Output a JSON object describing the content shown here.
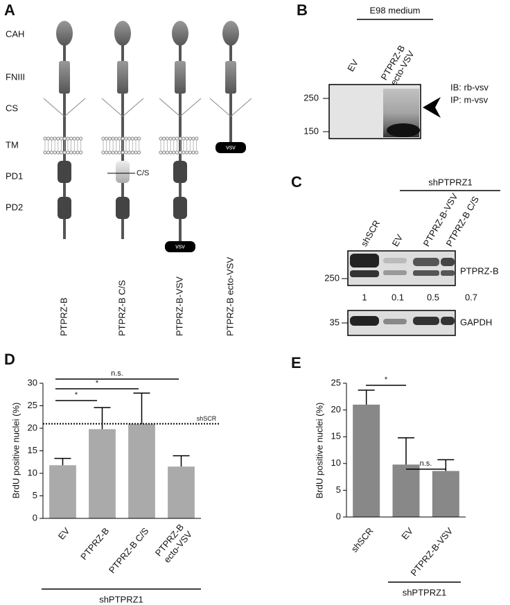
{
  "panel_a": {
    "letter": "A",
    "domain_labels": [
      "CAH",
      "FNIII",
      "CS",
      "TM",
      "PD1",
      "PD2"
    ],
    "constructs": [
      "PTPRZ-B",
      "PTPRZ-B C/S",
      "PTPRZ-B-VSV",
      "PTPRZ-B ecto-VSV"
    ],
    "mutation_label": "C/S",
    "tag_label": "vsv"
  },
  "panel_b": {
    "letter": "B",
    "header": "E98 medium",
    "lanes": [
      "EV",
      "PTPRZ-B\necto-VSV"
    ],
    "markers": [
      "250",
      "150"
    ],
    "notes": [
      "IB: rb-vsv",
      "IP: m-vsv"
    ]
  },
  "panel_c": {
    "letter": "C",
    "group_label": "shPTPRZ1",
    "lanes": [
      "shSCR",
      "EV",
      "PTPRZ-B-VSV",
      "PTPRZ-B C/S"
    ],
    "quantification": [
      "1",
      "0.1",
      "0.5",
      "0.7"
    ],
    "blots": [
      {
        "label": "PTPRZ-B",
        "marker": "250"
      },
      {
        "label": "GAPDH",
        "marker": "35"
      }
    ]
  },
  "chart_data": [
    {
      "type": "bar",
      "panel_label": "D",
      "y_label": "BrdU positive nuclei (%)",
      "categories": [
        "EV",
        "PTPRZ-B",
        "PTPRZ-B C/S",
        "PTPRZ-B\necto-VSV"
      ],
      "values": [
        11.8,
        19.8,
        21,
        11.5
      ],
      "errors": [
        1.5,
        4.8,
        6.8,
        2.4
      ],
      "color": "#aaaaaa",
      "ylim": [
        0,
        30
      ],
      "yticks": [
        0,
        5,
        10,
        15,
        20,
        25,
        30
      ],
      "reference_line": {
        "value": 21,
        "label": "shSCR"
      },
      "annotations": [
        "*",
        "*",
        "n.s."
      ],
      "group_label": "shPTPRZ1"
    },
    {
      "type": "bar",
      "panel_label": "E",
      "y_label": "BrdU positive nuclei (%)",
      "categories": [
        "shSCR",
        "EV",
        "PTPRZ-B-VSV"
      ],
      "values": [
        21,
        9.8,
        8.6
      ],
      "errors": [
        2.7,
        5,
        2.1
      ],
      "color": "#888888",
      "ylim": [
        0,
        25
      ],
      "yticks": [
        0,
        5,
        10,
        15,
        20,
        25
      ],
      "annotations": [
        "*",
        "n.s."
      ],
      "group_label": "shPTPRZ1"
    }
  ]
}
